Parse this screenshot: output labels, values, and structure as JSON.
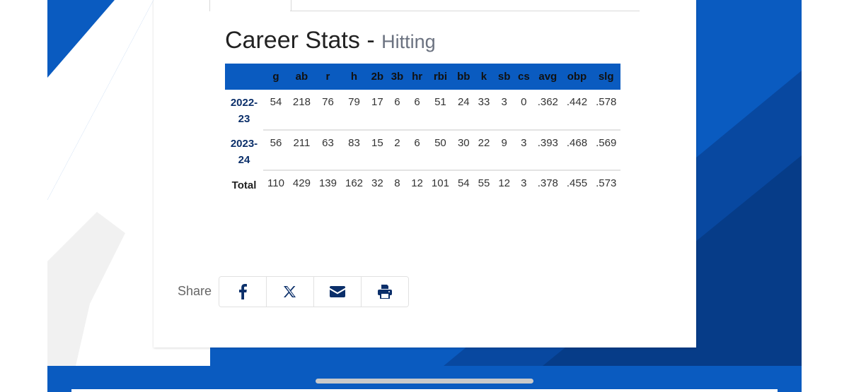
{
  "page": {
    "title": "Career Stats",
    "separator": "-",
    "subtitle": "Hitting"
  },
  "colors": {
    "brand_blue": "#0a5bc0",
    "dark_blue": "#0b2f6a"
  },
  "stats": {
    "columns": [
      "g",
      "ab",
      "r",
      "h",
      "2b",
      "3b",
      "hr",
      "rbi",
      "bb",
      "k",
      "sb",
      "cs",
      "avg",
      "obp",
      "slg"
    ],
    "rows": [
      {
        "season_line1": "2022-",
        "season_line2": "23",
        "values": [
          "54",
          "218",
          "76",
          "79",
          "17",
          "6",
          "6",
          "51",
          "24",
          "33",
          "3",
          "0",
          ".362",
          ".442",
          ".578"
        ]
      },
      {
        "season_line1": "2023-",
        "season_line2": "24",
        "values": [
          "56",
          "211",
          "63",
          "83",
          "15",
          "2",
          "6",
          "50",
          "30",
          "22",
          "9",
          "3",
          ".393",
          ".468",
          ".569"
        ]
      }
    ],
    "total": {
      "label": "Total",
      "values": [
        "110",
        "429",
        "139",
        "162",
        "32",
        "8",
        "12",
        "101",
        "54",
        "55",
        "12",
        "3",
        ".378",
        ".455",
        ".573"
      ]
    }
  },
  "share": {
    "label": "Share",
    "buttons": [
      {
        "icon": "facebook-icon",
        "label": "Facebook"
      },
      {
        "icon": "x-twitter-icon",
        "label": "X"
      },
      {
        "icon": "email-icon",
        "label": "Email"
      },
      {
        "icon": "print-icon",
        "label": "Print"
      }
    ]
  }
}
